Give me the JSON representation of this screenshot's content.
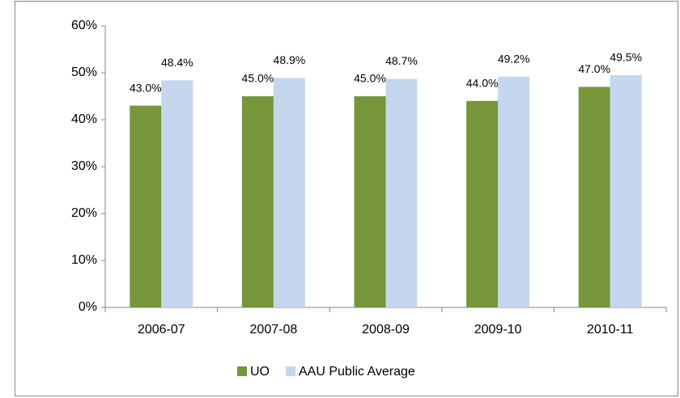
{
  "chart_data": {
    "type": "bar",
    "categories": [
      "2006-07",
      "2007-08",
      "2008-09",
      "2009-10",
      "2010-11"
    ],
    "series": [
      {
        "name": "UO",
        "color": "#77963a",
        "values": [
          43,
          45,
          45,
          44,
          47
        ],
        "value_labels": [
          "43.0%",
          "45.0%",
          "45.0%",
          "44.0%",
          "47.0%"
        ]
      },
      {
        "name": "AAU Public Average",
        "color": "#c5d6ee",
        "values": [
          48.4,
          48.9,
          48.7,
          49.2,
          49.5
        ],
        "value_labels": [
          "48.4%",
          "48.9%",
          "48.7%",
          "49.2%",
          "49.5%"
        ]
      }
    ],
    "ylim": [
      0,
      60
    ],
    "yticks": [
      {
        "value": 0,
        "label": "0%"
      },
      {
        "value": 10,
        "label": "10%"
      },
      {
        "value": 20,
        "label": "20%"
      },
      {
        "value": 30,
        "label": "30%"
      },
      {
        "value": 40,
        "label": "40%"
      },
      {
        "value": 50,
        "label": "50%"
      },
      {
        "value": 60,
        "label": "60%"
      }
    ],
    "grid": false,
    "legend": "bottom"
  }
}
